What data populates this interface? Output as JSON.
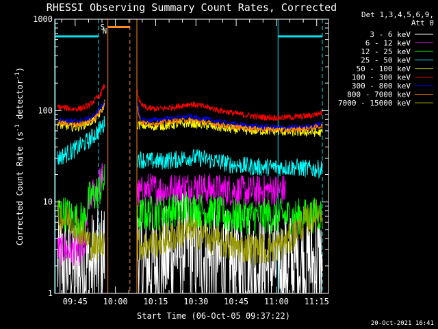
{
  "chart_data": {
    "type": "line",
    "title": "RHESSI Observing Summary Count Rates, Corrected",
    "xlabel": "Start Time (06-Oct-05 09:37:22)",
    "ylabel": "Corrected Count Rate (s",
    "ylabel_sup1": "-1",
    "ylabel_mid": " detector",
    "ylabel_sup2": "-1",
    "ylabel_end": ")",
    "y_scale": "log",
    "ylim": [
      1,
      1000
    ],
    "y_ticks": [
      {
        "v": 1,
        "label": "1"
      },
      {
        "v": 10,
        "label": "10"
      },
      {
        "v": 100,
        "label": "100"
      },
      {
        "v": 1000,
        "label": "1000"
      }
    ],
    "x_unit": "minutes after 09:37:22",
    "xlim": [
      0,
      102
    ],
    "x_ticks": [
      {
        "v": 7.6,
        "label": "09:45"
      },
      {
        "v": 22.6,
        "label": "10:00"
      },
      {
        "v": 37.6,
        "label": "10:15"
      },
      {
        "v": 52.6,
        "label": "10:30"
      },
      {
        "v": 67.6,
        "label": "10:45"
      },
      {
        "v": 82.6,
        "label": "11:00"
      },
      {
        "v": 97.6,
        "label": "11:15"
      }
    ],
    "legend_header": [
      "Det 1,3,4,5,6,9,",
      "Att 0"
    ],
    "legend_position": "right, outside plot",
    "footer_date": "20-Oct-2021 16:41",
    "markers": {
      "S": {
        "label": "S",
        "x": 17.8,
        "color": "#ff8c1a"
      },
      "N": {
        "label": "N",
        "x": 18.6,
        "color": "#00e5ee"
      }
    },
    "night_bars": [
      {
        "x0": 0.2,
        "x1": 16.3,
        "y": 650,
        "color": "#00e5ee"
      },
      {
        "x0": 83.2,
        "x1": 99.7,
        "y": 650,
        "color": "#00e5ee"
      },
      {
        "x0": 19.8,
        "x1": 28.0,
        "y": 820,
        "color": "#ff8c1a"
      }
    ],
    "vlines": [
      {
        "x": 0.2,
        "color": "#00e5ee",
        "dash": false
      },
      {
        "x": 16.3,
        "color": "#00e5ee",
        "dash": true
      },
      {
        "x": 19.8,
        "color": "#ff8c1a",
        "dash": false
      },
      {
        "x": 28.0,
        "color": "#ff8c1a",
        "dash": true
      },
      {
        "x": 30.6,
        "color": "#ff8c1a",
        "dash": false
      },
      {
        "x": 83.2,
        "color": "#00e5ee",
        "dash": false
      },
      {
        "x": 99.7,
        "color": "#00e5ee",
        "dash": true
      }
    ],
    "segments": [
      [
        1.0,
        18.6
      ],
      [
        30.8,
        99.7
      ]
    ],
    "series": [
      {
        "name": "3 - 6 keV",
        "color": "#ffffff",
        "pts1": [
          [
            1,
            2.0
          ],
          [
            4,
            2.0
          ],
          [
            8,
            2.0
          ],
          [
            10,
            2.0
          ],
          [
            13,
            2.0
          ],
          [
            15,
            2.1
          ],
          [
            17,
            2.2
          ],
          [
            18.6,
            3.0
          ]
        ],
        "pts2": [
          [
            30.8,
            3.0
          ],
          [
            33,
            2.0
          ],
          [
            36,
            2.0
          ],
          [
            40,
            2.2
          ],
          [
            45,
            3.0
          ],
          [
            48,
            3.4
          ],
          [
            50,
            3.3
          ],
          [
            55,
            2.6
          ],
          [
            60,
            2.2
          ],
          [
            65,
            2.1
          ],
          [
            70,
            2.0
          ],
          [
            75,
            2.0
          ],
          [
            80,
            2.0
          ],
          [
            86,
            2.0
          ],
          [
            90,
            2.1
          ],
          [
            95,
            2.2
          ],
          [
            99.7,
            2.2
          ]
        ],
        "noise": 0.6
      },
      {
        "name": "6 - 12 keV",
        "color": "#ff00ff",
        "pts1": [
          [
            1,
            3.0
          ],
          [
            4,
            3.0
          ],
          [
            8,
            3.0
          ],
          [
            11,
            3.0
          ],
          [
            13,
            11.0
          ],
          [
            15,
            13.0
          ],
          [
            17,
            17.0
          ],
          [
            18.6,
            21.0
          ]
        ],
        "pts2": [
          [
            30.8,
            12.0
          ],
          [
            35,
            14.0
          ],
          [
            40,
            13.5
          ],
          [
            45,
            14.0
          ],
          [
            50,
            14.5
          ],
          [
            55,
            14.0
          ],
          [
            60,
            13.5
          ],
          [
            65,
            13.5
          ],
          [
            70,
            13.0
          ],
          [
            75,
            13.0
          ],
          [
            80,
            13.5
          ],
          [
            86,
            13.5
          ]
        ],
        "noise": 0.18
      },
      {
        "name": "12 - 25 keV",
        "color": "#00ff00",
        "pts1": [
          [
            1,
            8.0
          ],
          [
            4,
            7.5
          ],
          [
            8,
            6.5
          ],
          [
            11,
            6.5
          ],
          [
            13,
            11.0
          ],
          [
            15,
            12.0
          ],
          [
            17,
            14.0
          ],
          [
            18.6,
            17.0
          ]
        ],
        "pts2": [
          [
            30.8,
            7.0
          ],
          [
            35,
            7.5
          ],
          [
            40,
            7.8
          ],
          [
            45,
            8.0
          ],
          [
            50,
            8.5
          ],
          [
            55,
            8.0
          ],
          [
            60,
            7.5
          ],
          [
            65,
            7.0
          ],
          [
            70,
            7.0
          ],
          [
            75,
            7.0
          ],
          [
            80,
            7.0
          ],
          [
            86,
            7.0
          ],
          [
            90,
            7.0
          ],
          [
            95,
            7.0
          ],
          [
            99.7,
            7.5
          ]
        ],
        "noise": 0.2
      },
      {
        "name": "25 - 50 keV",
        "color": "#00ffff",
        "pts1": [
          [
            1,
            30
          ],
          [
            4,
            33
          ],
          [
            7,
            37
          ],
          [
            10,
            42
          ],
          [
            13,
            48
          ],
          [
            15,
            55
          ],
          [
            17,
            63
          ],
          [
            18.6,
            72
          ]
        ],
        "pts2": [
          [
            30.8,
            30
          ],
          [
            35,
            28
          ],
          [
            40,
            28
          ],
          [
            45,
            29
          ],
          [
            50,
            31
          ],
          [
            55,
            30
          ],
          [
            60,
            28
          ],
          [
            65,
            26
          ],
          [
            70,
            25
          ],
          [
            75,
            24
          ],
          [
            80,
            24
          ],
          [
            85,
            24
          ],
          [
            90,
            24
          ],
          [
            95,
            23
          ],
          [
            99.7,
            23
          ]
        ],
        "noise": 0.1
      },
      {
        "name": "50 - 100 keV",
        "color": "#ffff00",
        "pts1": [
          [
            1,
            70
          ],
          [
            4,
            68
          ],
          [
            7,
            66
          ],
          [
            10,
            68
          ],
          [
            13,
            75
          ],
          [
            15,
            80
          ],
          [
            17,
            95
          ],
          [
            18.6,
            120
          ]
        ],
        "pts2": [
          [
            30.8,
            70
          ],
          [
            35,
            67
          ],
          [
            40,
            68
          ],
          [
            45,
            70
          ],
          [
            50,
            73
          ],
          [
            55,
            70
          ],
          [
            60,
            66
          ],
          [
            65,
            63
          ],
          [
            70,
            61
          ],
          [
            75,
            60
          ],
          [
            80,
            60
          ],
          [
            85,
            59
          ],
          [
            90,
            58
          ],
          [
            95,
            58
          ],
          [
            99.7,
            57
          ]
        ],
        "noise": 0.05
      },
      {
        "name": "100 - 300 keV",
        "color": "#ff0000",
        "pts1": [
          [
            1,
            110
          ],
          [
            4,
            107
          ],
          [
            7,
            104
          ],
          [
            10,
            106
          ],
          [
            13,
            115
          ],
          [
            15,
            130
          ],
          [
            17,
            150
          ],
          [
            18.6,
            190
          ]
        ],
        "pts2": [
          [
            30.8,
            160
          ],
          [
            32,
            115
          ],
          [
            35,
            105
          ],
          [
            40,
            105
          ],
          [
            45,
            110
          ],
          [
            50,
            118
          ],
          [
            55,
            112
          ],
          [
            60,
            103
          ],
          [
            65,
            96
          ],
          [
            70,
            90
          ],
          [
            75,
            86
          ],
          [
            80,
            84
          ],
          [
            85,
            84
          ],
          [
            90,
            85
          ],
          [
            95,
            88
          ],
          [
            99.7,
            95
          ]
        ],
        "noise": 0.035
      },
      {
        "name": "300 - 800 keV",
        "color": "#0000ff",
        "pts1": [
          [
            1,
            80
          ],
          [
            4,
            78
          ],
          [
            7,
            76
          ],
          [
            10,
            78
          ],
          [
            13,
            82
          ],
          [
            15,
            90
          ],
          [
            17,
            105
          ],
          [
            18.6,
            130
          ]
        ],
        "pts2": [
          [
            30.8,
            120
          ],
          [
            32,
            80
          ],
          [
            35,
            78
          ],
          [
            40,
            80
          ],
          [
            45,
            83
          ],
          [
            50,
            86
          ],
          [
            55,
            82
          ],
          [
            60,
            77
          ],
          [
            65,
            72
          ],
          [
            70,
            69
          ],
          [
            75,
            67
          ],
          [
            80,
            66
          ],
          [
            85,
            65
          ],
          [
            90,
            65
          ],
          [
            95,
            67
          ],
          [
            99.7,
            72
          ]
        ],
        "noise": 0.03
      },
      {
        "name": "800 - 7000 keV",
        "color": "#ff8000",
        "pts1": [
          [
            1,
            74
          ],
          [
            4,
            72
          ],
          [
            7,
            70
          ],
          [
            10,
            72
          ],
          [
            13,
            76
          ],
          [
            15,
            84
          ],
          [
            17,
            98
          ],
          [
            18.6,
            120
          ]
        ],
        "pts2": [
          [
            30.8,
            110
          ],
          [
            32,
            74
          ],
          [
            35,
            72
          ],
          [
            40,
            74
          ],
          [
            45,
            77
          ],
          [
            50,
            79
          ],
          [
            55,
            75
          ],
          [
            60,
            71
          ],
          [
            65,
            67
          ],
          [
            70,
            65
          ],
          [
            75,
            63
          ],
          [
            80,
            62
          ],
          [
            85,
            61
          ],
          [
            90,
            62
          ],
          [
            95,
            64
          ],
          [
            99.7,
            68
          ]
        ],
        "noise": 0.03
      },
      {
        "name": "7000 - 15000 keV",
        "color": "#999900",
        "pts1": [
          [
            1,
            7.0
          ],
          [
            3,
            6.5
          ],
          [
            5,
            6.5
          ],
          [
            7,
            6.0
          ],
          [
            9,
            5.0
          ],
          [
            11,
            4.5
          ],
          [
            13,
            3.5
          ],
          [
            15,
            3.2
          ],
          [
            17,
            3.5
          ],
          [
            18.6,
            4.0
          ]
        ],
        "pts2": [
          [
            30.8,
            3.5
          ],
          [
            33,
            3.3
          ],
          [
            36,
            3.4
          ],
          [
            40,
            3.8
          ],
          [
            44,
            4.2
          ],
          [
            47,
            4.6
          ],
          [
            50,
            4.8
          ],
          [
            54,
            4.5
          ],
          [
            58,
            4.0
          ],
          [
            62,
            3.6
          ],
          [
            66,
            3.3
          ],
          [
            70,
            3.2
          ],
          [
            74,
            3.1
          ],
          [
            78,
            3.1
          ],
          [
            82,
            3.2
          ],
          [
            86,
            3.6
          ],
          [
            88,
            4.0
          ],
          [
            90,
            4.8
          ],
          [
            92,
            5.6
          ],
          [
            95,
            6.5
          ],
          [
            99.7,
            8.0
          ]
        ],
        "noise": 0.18
      }
    ]
  }
}
